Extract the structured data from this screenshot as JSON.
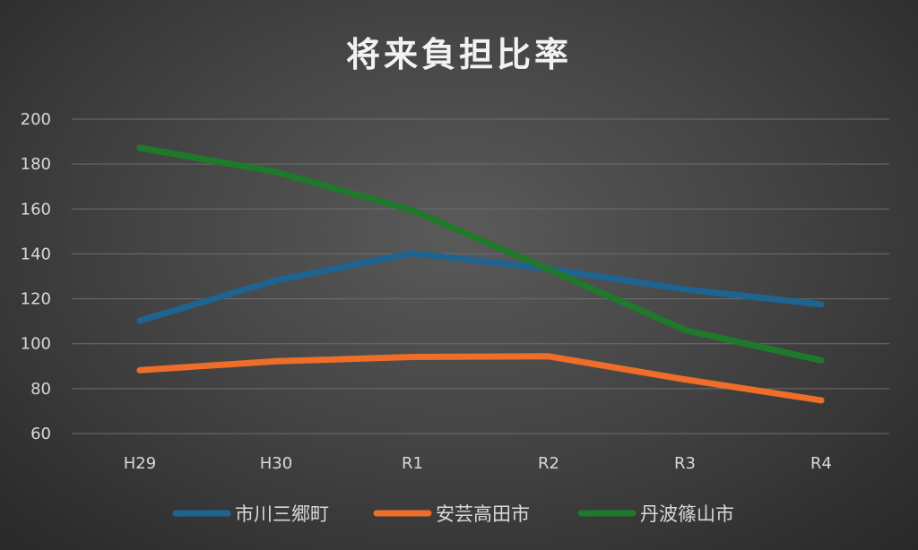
{
  "chart_data": {
    "type": "line",
    "title": "将来負担比率",
    "xlabel": "",
    "ylabel": "",
    "categories": [
      "H29",
      "H30",
      "R1",
      "R2",
      "R3",
      "R4"
    ],
    "ylim": [
      60,
      200
    ],
    "yticks": [
      60,
      80,
      100,
      120,
      140,
      160,
      180,
      200
    ],
    "grid": true,
    "legend_position": "bottom",
    "series": [
      {
        "name": "市川三郷町",
        "color": "#1f6390",
        "values": [
          110.3,
          128.2,
          140.3,
          133.3,
          124.2,
          117.5
        ]
      },
      {
        "name": "安芸高田市",
        "color": "#ee6d28",
        "values": [
          88.2,
          92.2,
          94.1,
          94.4,
          84.1,
          74.8
        ]
      },
      {
        "name": "丹波篠山市",
        "color": "#1e7a2a",
        "values": [
          187.2,
          176.5,
          159.4,
          133.1,
          106.1,
          92.6
        ]
      }
    ]
  }
}
